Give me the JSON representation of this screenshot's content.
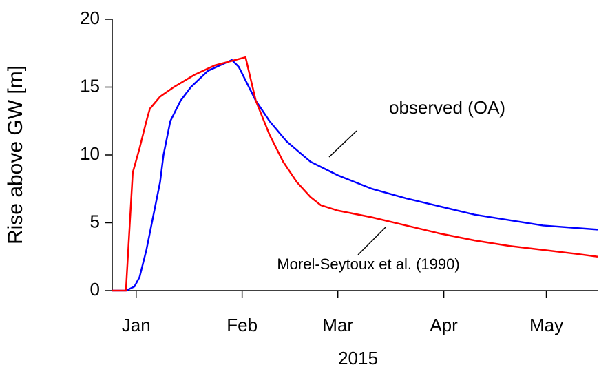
{
  "chart_data": {
    "type": "line",
    "x_label": "2015",
    "y_label": "Rise above GW [m]",
    "xlim": [
      -6,
      136
    ],
    "ylim": [
      0,
      20
    ],
    "xticks": [
      {
        "value": 1,
        "label": "Jan"
      },
      {
        "value": 32,
        "label": "Feb"
      },
      {
        "value": 60,
        "label": "Mar"
      },
      {
        "value": 91,
        "label": "Apr"
      },
      {
        "value": 121,
        "label": "May"
      }
    ],
    "yticks": [
      0,
      5,
      10,
      15,
      20
    ],
    "annotations": [
      "observed (OA)",
      "Morel-Seytoux et al. (1990)"
    ],
    "series": [
      {
        "name": "observed (OA)",
        "color": "#0000ff",
        "x": [
          -6,
          -2,
          0.5,
          2,
          4,
          6,
          8,
          9,
          11,
          14,
          17,
          22,
          29,
          31,
          33,
          36,
          40,
          45,
          52,
          60,
          70,
          80,
          90,
          100,
          110,
          120,
          136
        ],
        "values": [
          0,
          0,
          0.3,
          1,
          3,
          5.5,
          8,
          10,
          12.5,
          14,
          15,
          16.2,
          17,
          16.5,
          15.5,
          14,
          12.5,
          11,
          9.5,
          8.5,
          7.5,
          6.8,
          6.2,
          5.6,
          5.2,
          4.8,
          4.5
        ]
      },
      {
        "name": "Morel-Seytoux et al. (1990)",
        "color": "#ff0000",
        "x": [
          -6,
          -2,
          0,
          2,
          4,
          5,
          8,
          12,
          18,
          24,
          30,
          33,
          36,
          40,
          44,
          48,
          52,
          55,
          60,
          70,
          80,
          90,
          100,
          110,
          120,
          130,
          136
        ],
        "values": [
          0,
          0,
          8.7,
          10.5,
          12.5,
          13.4,
          14.3,
          15,
          15.9,
          16.6,
          17,
          17.2,
          14,
          11.5,
          9.5,
          8,
          6.9,
          6.3,
          5.9,
          5.4,
          4.8,
          4.2,
          3.7,
          3.3,
          3.0,
          2.7,
          2.5
        ]
      }
    ]
  }
}
